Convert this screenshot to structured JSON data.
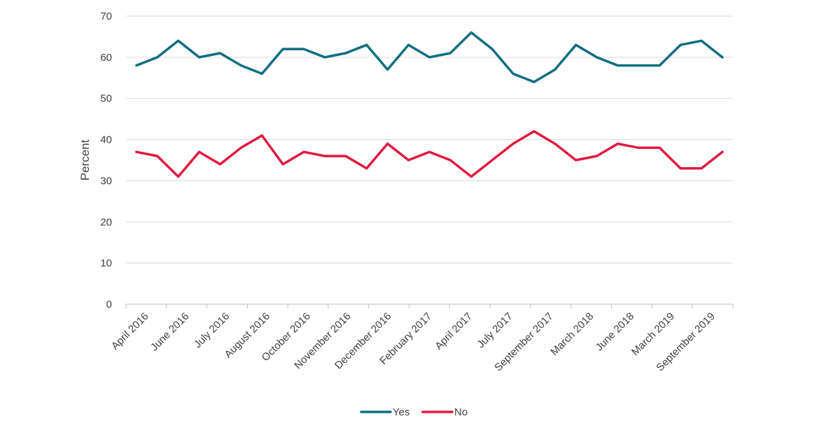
{
  "chart_data": {
    "type": "line",
    "title": "",
    "xlabel": "",
    "ylabel": "Percent",
    "ylim": [
      0,
      70
    ],
    "yticks": [
      0,
      10,
      20,
      30,
      40,
      50,
      60,
      70
    ],
    "grid": "horizontal",
    "legend_position": "bottom-center",
    "x_tick_labels": [
      "April 2016",
      "June 2016",
      "July 2016",
      "August 2016",
      "October 2016",
      "November 2016",
      "December 2016",
      "February 2017",
      "April 2017",
      "July 2017",
      "September 2017",
      "March 2018",
      "June 2018",
      "March 2019",
      "September 2019"
    ],
    "series": [
      {
        "name": "Yes",
        "color": "#0f6e80",
        "values": [
          58,
          60,
          64,
          60,
          61,
          58,
          56,
          62,
          62,
          60,
          61,
          63,
          57,
          63,
          60,
          61,
          66,
          62,
          56,
          54,
          57,
          63,
          60,
          58,
          58,
          58,
          63,
          64,
          60
        ]
      },
      {
        "name": "No",
        "color": "#e0193f",
        "values": [
          37,
          36,
          31,
          37,
          34,
          38,
          41,
          34,
          37,
          36,
          36,
          33,
          39,
          35,
          37,
          35,
          31,
          35,
          39,
          42,
          39,
          35,
          36,
          39,
          38,
          38,
          33,
          33,
          37
        ]
      }
    ]
  }
}
